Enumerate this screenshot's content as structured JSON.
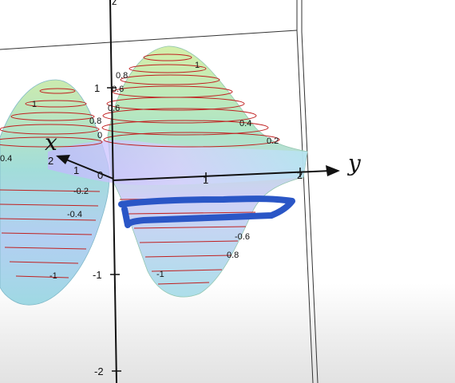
{
  "figure": {
    "axes": {
      "x": {
        "label": "x",
        "tick_labels": [
          "2",
          "1",
          "0"
        ]
      },
      "y": {
        "label": "y",
        "tick_labels": [
          "1",
          "2"
        ]
      },
      "z": {
        "label": "z",
        "tick_labels": [
          "z",
          "1",
          "-1",
          "-2"
        ]
      }
    },
    "contour_labels": [
      "1",
      "0.8",
      "0.6",
      "0.4",
      "0.2",
      "0",
      "1",
      "0.8",
      "0.6",
      "0.4",
      "-0.2",
      "-0.4",
      "-1",
      "-1",
      "-0.6",
      "0.8"
    ],
    "colors": {
      "surface_top": "#b9e39d",
      "surface_mid": "#8fd8d8",
      "surface_low": "#a9c9ff",
      "contour": "#c02020",
      "annotation": "#2a56c6",
      "axis": "#111111"
    },
    "annotation": {
      "type": "hand-drawn-highlight"
    }
  }
}
